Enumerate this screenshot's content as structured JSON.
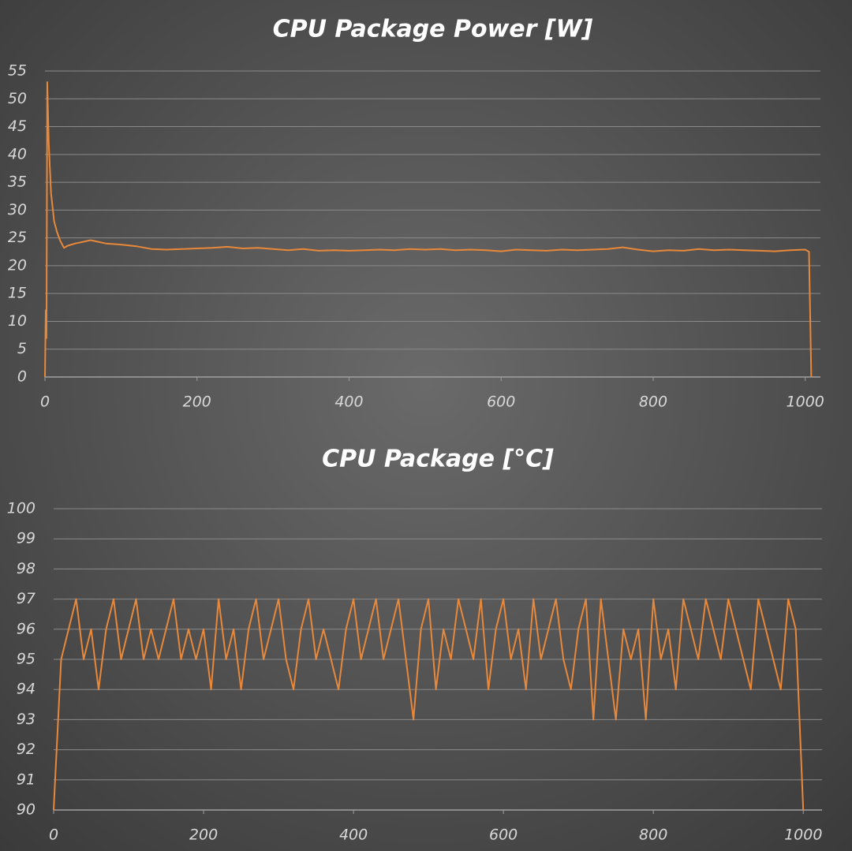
{
  "chart_data": [
    {
      "type": "line",
      "title": "CPU Package Power [W]",
      "color": "#e8883a",
      "x": [
        0,
        1,
        2,
        3,
        5,
        8,
        12,
        16,
        20,
        25,
        30,
        40,
        50,
        60,
        70,
        80,
        100,
        120,
        140,
        160,
        180,
        200,
        220,
        240,
        260,
        280,
        300,
        320,
        340,
        360,
        380,
        400,
        420,
        440,
        460,
        480,
        500,
        520,
        540,
        560,
        580,
        600,
        620,
        640,
        660,
        680,
        700,
        720,
        740,
        760,
        780,
        800,
        820,
        840,
        860,
        880,
        900,
        920,
        940,
        960,
        980,
        1000,
        1005,
        1008
      ],
      "values": [
        0,
        12,
        7,
        53,
        42,
        33,
        28,
        26,
        24.5,
        23.2,
        23.6,
        24,
        24.3,
        24.6,
        24.3,
        24,
        23.8,
        23.5,
        23,
        22.9,
        23,
        23.1,
        23.2,
        23.4,
        23.1,
        23.2,
        23,
        22.8,
        23,
        22.7,
        22.8,
        22.7,
        22.8,
        22.9,
        22.8,
        23,
        22.9,
        23,
        22.8,
        22.9,
        22.8,
        22.6,
        22.9,
        22.8,
        22.7,
        22.9,
        22.8,
        22.9,
        23,
        23.3,
        22.9,
        22.6,
        22.8,
        22.7,
        23,
        22.8,
        22.9,
        22.8,
        22.7,
        22.6,
        22.8,
        22.9,
        22.5,
        0
      ],
      "xlim": [
        0,
        1020
      ],
      "ylim": [
        0,
        55
      ],
      "xticks": [
        0,
        200,
        400,
        600,
        800,
        1000
      ],
      "yticks": [
        0,
        5,
        10,
        15,
        20,
        25,
        30,
        35,
        40,
        45,
        50,
        55
      ],
      "grid": true
    },
    {
      "type": "line",
      "title": "CPU Package [°C]",
      "color": "#e8883a",
      "x": [
        0,
        10,
        20,
        30,
        40,
        50,
        60,
        70,
        80,
        90,
        100,
        110,
        120,
        130,
        140,
        150,
        160,
        170,
        180,
        190,
        200,
        210,
        220,
        230,
        240,
        250,
        260,
        270,
        280,
        290,
        300,
        310,
        320,
        330,
        340,
        350,
        360,
        370,
        380,
        390,
        400,
        410,
        420,
        430,
        440,
        450,
        460,
        470,
        480,
        490,
        500,
        510,
        520,
        530,
        540,
        550,
        560,
        570,
        580,
        590,
        600,
        610,
        620,
        630,
        640,
        650,
        660,
        670,
        680,
        690,
        700,
        710,
        720,
        730,
        740,
        750,
        760,
        770,
        780,
        790,
        800,
        810,
        820,
        830,
        840,
        850,
        860,
        870,
        880,
        890,
        900,
        910,
        920,
        930,
        940,
        950,
        960,
        970,
        980,
        990,
        1000
      ],
      "values": [
        90,
        95,
        96,
        97,
        95,
        96,
        94,
        96,
        97,
        95,
        96,
        97,
        95,
        96,
        95,
        96,
        97,
        95,
        96,
        95,
        96,
        94,
        97,
        95,
        96,
        94,
        96,
        97,
        95,
        96,
        97,
        95,
        94,
        96,
        97,
        95,
        96,
        95,
        94,
        96,
        97,
        95,
        96,
        97,
        95,
        96,
        97,
        95,
        93,
        96,
        97,
        94,
        96,
        95,
        97,
        96,
        95,
        97,
        94,
        96,
        97,
        95,
        96,
        94,
        97,
        95,
        96,
        97,
        95,
        94,
        96,
        97,
        93,
        97,
        95,
        93,
        96,
        95,
        96,
        93,
        97,
        95,
        96,
        94,
        97,
        96,
        95,
        97,
        96,
        95,
        97,
        96,
        95,
        94,
        97,
        96,
        95,
        94,
        97,
        96,
        90
      ],
      "xlim": [
        0,
        1025
      ],
      "ylim": [
        90,
        100
      ],
      "xticks": [
        0,
        200,
        400,
        600,
        800,
        1000
      ],
      "yticks": [
        90,
        91,
        92,
        93,
        94,
        95,
        96,
        97,
        98,
        99,
        100
      ],
      "grid": true
    }
  ]
}
